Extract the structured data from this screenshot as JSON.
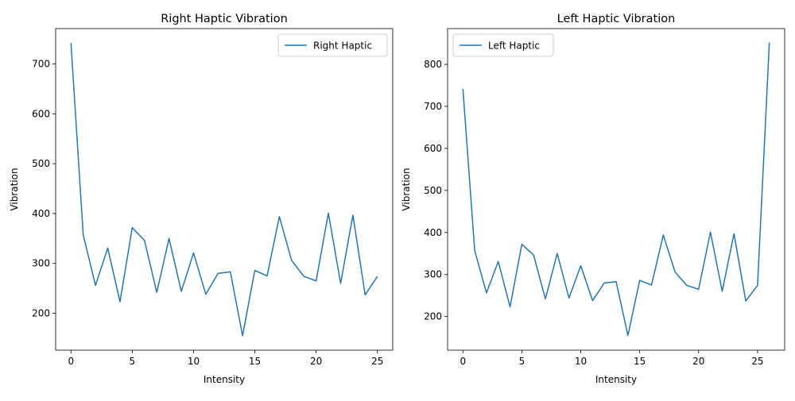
{
  "chart_data": [
    {
      "type": "line",
      "title": "Right Haptic Vibration",
      "xlabel": "Intensity",
      "ylabel": "Vibration",
      "xlim": [
        -1.25,
        26.25
      ],
      "ylim": [
        126,
        771
      ],
      "xticks": [
        0,
        5,
        10,
        15,
        20,
        25
      ],
      "yticks": [
        200,
        300,
        400,
        500,
        600,
        700
      ],
      "grid": false,
      "legend_position": "top-right",
      "series": [
        {
          "name": "Right Haptic",
          "color": "#1f77b4",
          "x": [
            0,
            1,
            2,
            3,
            4,
            5,
            6,
            7,
            8,
            9,
            10,
            11,
            12,
            13,
            14,
            15,
            16,
            17,
            18,
            19,
            20,
            21,
            22,
            23,
            24,
            25
          ],
          "y": [
            742,
            357,
            256,
            331,
            223,
            372,
            346,
            242,
            350,
            244,
            321,
            238,
            280,
            283,
            155,
            286,
            275,
            394,
            306,
            274,
            265,
            401,
            260,
            397,
            237,
            274
          ]
        }
      ]
    },
    {
      "type": "line",
      "title": "Left Haptic Vibration",
      "xlabel": "Intensity",
      "ylabel": "Vibration",
      "xlim": [
        -1.3,
        27.3
      ],
      "ylim": [
        120,
        885
      ],
      "xticks": [
        0,
        5,
        10,
        15,
        20,
        25
      ],
      "yticks": [
        200,
        300,
        400,
        500,
        600,
        700,
        800
      ],
      "grid": false,
      "legend_position": "top-left",
      "series": [
        {
          "name": "Left Haptic",
          "color": "#1f77b4",
          "x": [
            0,
            1,
            2,
            3,
            4,
            5,
            6,
            7,
            8,
            9,
            10,
            11,
            12,
            13,
            14,
            15,
            16,
            17,
            18,
            19,
            20,
            21,
            22,
            23,
            24,
            25,
            26
          ],
          "y": [
            742,
            357,
            256,
            331,
            223,
            372,
            346,
            242,
            350,
            244,
            321,
            238,
            280,
            283,
            155,
            286,
            275,
            394,
            306,
            274,
            265,
            401,
            260,
            397,
            237,
            274,
            852
          ]
        }
      ]
    }
  ]
}
